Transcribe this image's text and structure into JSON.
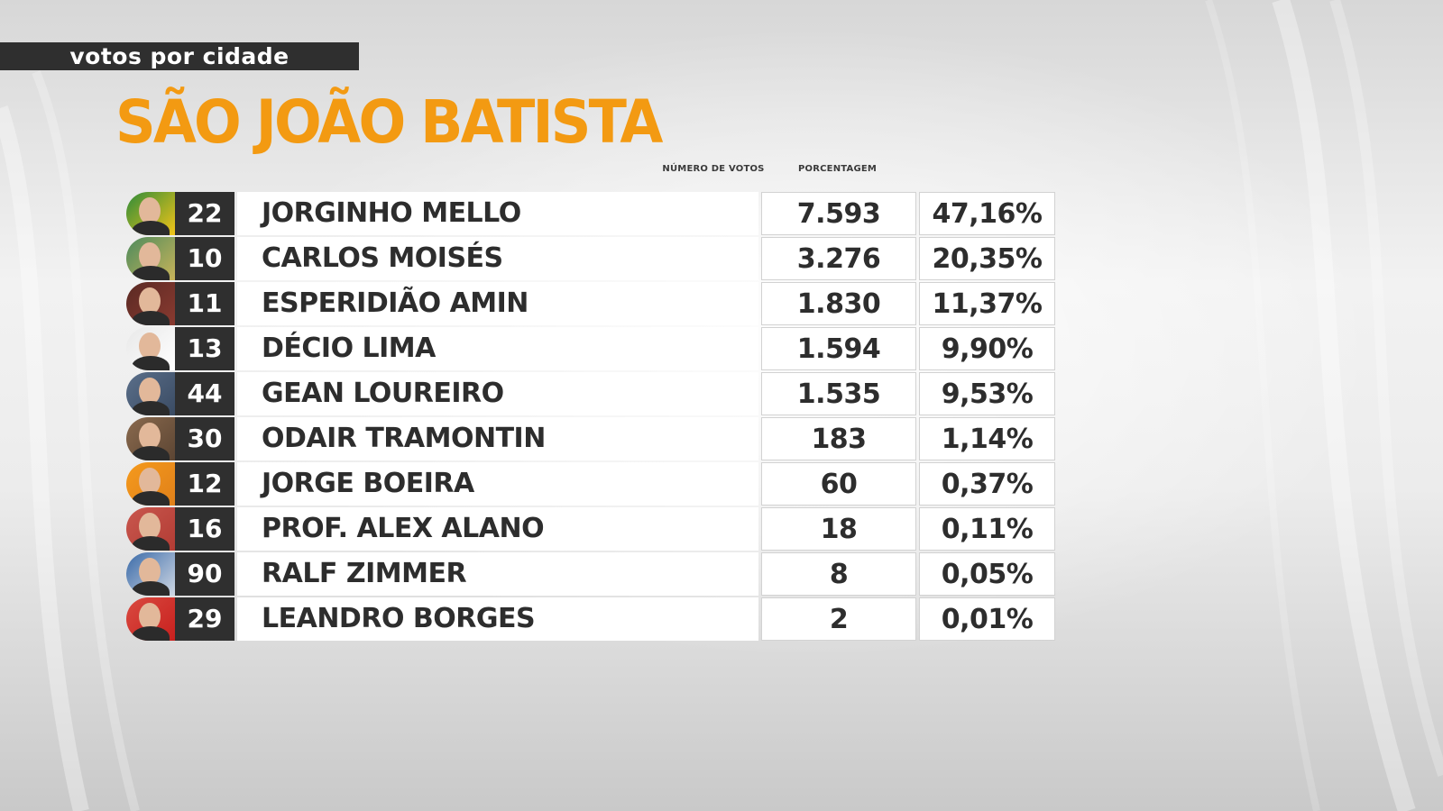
{
  "header": {
    "kicker": "votos por cidade",
    "city": "SÃO JOÃO BATISTA"
  },
  "columns": {
    "votes": "NÚMERO DE VOTOS",
    "percentage": "PORCENTAGEM"
  },
  "candidates": [
    {
      "number": "22",
      "name": "JORGINHO MELLO",
      "votes": "7.593",
      "percentage": "47,16%",
      "photo_bg": "#2e8b3a",
      "photo_accent": "#f2c418"
    },
    {
      "number": "10",
      "name": "CARLOS MOISÉS",
      "votes": "3.276",
      "percentage": "20,35%",
      "photo_bg": "#4c8a5c",
      "photo_accent": "#c9b45a"
    },
    {
      "number": "11",
      "name": "ESPERIDIÃO AMIN",
      "votes": "1.830",
      "percentage": "11,37%",
      "photo_bg": "#5a2a24",
      "photo_accent": "#8a3a30"
    },
    {
      "number": "13",
      "name": "DÉCIO LIMA",
      "votes": "1.594",
      "percentage": "9,90%",
      "photo_bg": "#e8e8e8",
      "photo_accent": "#ffffff"
    },
    {
      "number": "44",
      "name": "GEAN LOUREIRO",
      "votes": "1.535",
      "percentage": "9,53%",
      "photo_bg": "#5b6f8a",
      "photo_accent": "#3a4b63"
    },
    {
      "number": "30",
      "name": "ODAIR TRAMONTIN",
      "votes": "183",
      "percentage": "1,14%",
      "photo_bg": "#8a6a4e",
      "photo_accent": "#5c4533"
    },
    {
      "number": "12",
      "name": "JORGE BOEIRA",
      "votes": "60",
      "percentage": "0,37%",
      "photo_bg": "#f59a1c",
      "photo_accent": "#e0801a"
    },
    {
      "number": "16",
      "name": "PROF. ALEX ALANO",
      "votes": "18",
      "percentage": "0,11%",
      "photo_bg": "#c9574e",
      "photo_accent": "#b23c34"
    },
    {
      "number": "90",
      "name": "RALF ZIMMER",
      "votes": "8",
      "percentage": "0,05%",
      "photo_bg": "#3a6aa8",
      "photo_accent": "#d0d8e4"
    },
    {
      "number": "29",
      "name": "LEANDRO BORGES",
      "votes": "2",
      "percentage": "0,01%",
      "photo_bg": "#d94a40",
      "photo_accent": "#c8201e"
    }
  ]
}
